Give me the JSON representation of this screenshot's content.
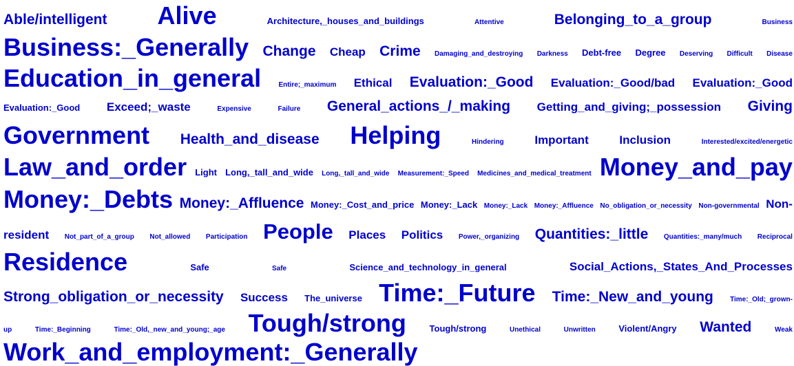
{
  "colors": {
    "word": "#0000cc",
    "background": "#ffffff"
  },
  "lines": [
    {
      "height": 46,
      "words": [
        {
          "text": "Able/intelligent",
          "size": 6
        },
        {
          "text": "Alive",
          "size": 10
        },
        {
          "text": "Architecture,_houses_and_buildings",
          "size": 2
        },
        {
          "text": "Attentive",
          "size": 1
        },
        {
          "text": "Belonging_to_a_group",
          "size": 6
        },
        {
          "text": "Business",
          "size": 1
        }
      ]
    },
    {
      "height": 46,
      "words": [
        {
          "text": "Business:_Generally",
          "size": 10
        },
        {
          "text": "Change",
          "size": 6
        },
        {
          "text": "Cheap",
          "size": 4
        },
        {
          "text": "Crime",
          "size": 6
        },
        {
          "text": "Damaging_and_destroying",
          "size": 1
        },
        {
          "text": "Darkness",
          "size": 1
        },
        {
          "text": "Debt-free",
          "size": 2
        },
        {
          "text": "Degree",
          "size": 2
        },
        {
          "text": "Deserving",
          "size": 1
        },
        {
          "text": "Difficult",
          "size": 1
        },
        {
          "text": "Disease",
          "size": 1
        }
      ]
    },
    {
      "height": 44,
      "words": [
        {
          "text": "Education_in_general",
          "size": 10
        },
        {
          "text": "Entire;_maximum",
          "size": 1
        },
        {
          "text": "Ethical",
          "size": 4
        },
        {
          "text": "Evaluation:_Good",
          "size": 6
        },
        {
          "text": "Evaluation:_Good/bad",
          "size": 4
        },
        {
          "text": "Evaluation:_Good",
          "size": 4
        }
      ]
    },
    {
      "height": 38,
      "words": [
        {
          "text": "Evaluation:_Good",
          "size": 2
        },
        {
          "text": "Exceed;_waste",
          "size": 4
        },
        {
          "text": "Expensive",
          "size": 1
        },
        {
          "text": "Failure",
          "size": 1
        },
        {
          "text": "General_actions_/_making",
          "size": 6
        },
        {
          "text": "Getting_and_giving;_possession",
          "size": 4
        },
        {
          "text": "Giving",
          "size": 6
        }
      ]
    },
    {
      "height": 45,
      "words": [
        {
          "text": "Government",
          "size": 10
        },
        {
          "text": "Health_and_disease",
          "size": 6
        },
        {
          "text": "Helping",
          "size": 10
        },
        {
          "text": "Hindering",
          "size": 1
        },
        {
          "text": "Important",
          "size": 4
        },
        {
          "text": "Inclusion",
          "size": 4
        },
        {
          "text": "Interested/excited/energetic",
          "size": 1
        }
      ]
    },
    {
      "height": 47,
      "words": [
        {
          "text": "Law_and_order",
          "size": 10
        },
        {
          "text": "Light",
          "size": 2
        },
        {
          "text": "Long,_tall_and_wide",
          "size": 2
        },
        {
          "text": "Long,_tall_and_wide",
          "size": 1
        },
        {
          "text": "Measurement:_Speed",
          "size": 1
        },
        {
          "text": "Medicines_and_medical_treatment",
          "size": 1
        },
        {
          "text": "Money_and_pay",
          "size": 10
        }
      ]
    },
    {
      "height": 48,
      "words": [
        {
          "text": "Money:_Debts",
          "size": 10
        },
        {
          "text": "Money:_Affluence",
          "size": 6
        },
        {
          "text": "Money:_Cost_and_price",
          "size": 2
        },
        {
          "text": "Money:_Lack",
          "size": 2
        },
        {
          "text": "Money:_Lack",
          "size": 1
        },
        {
          "text": "Money:_Affluence",
          "size": 1
        },
        {
          "text": "No_obligation_or_necessity",
          "size": 1
        },
        {
          "text": "Non-governmental",
          "size": 1
        },
        {
          "text": "Non-",
          "size": 4
        }
      ]
    },
    {
      "height": 45,
      "words": [
        {
          "text": "resident",
          "size": 4
        },
        {
          "text": "Not_part_of_a_group",
          "size": 1
        },
        {
          "text": "Not_allowed",
          "size": 1
        },
        {
          "text": "Participation",
          "size": 1
        },
        {
          "text": "People",
          "size": 9
        },
        {
          "text": "Places",
          "size": 4
        },
        {
          "text": "Politics",
          "size": 4
        },
        {
          "text": "Power,_organizing",
          "size": 1
        },
        {
          "text": "Quantities:_little",
          "size": 6
        },
        {
          "text": "Quantities:_many/much",
          "size": 1
        },
        {
          "text": "Reciprocal",
          "size": 1
        }
      ]
    },
    {
      "height": 44,
      "words": [
        {
          "text": "Residence",
          "size": 10
        },
        {
          "text": "Safe",
          "size": 2
        },
        {
          "text": "Safe",
          "size": 1
        },
        {
          "text": "Science_and_technology_in_general",
          "size": 2
        },
        {
          "text": "Social_Actions,_States_And_Processes",
          "size": 4
        }
      ]
    },
    {
      "height": 46,
      "words": [
        {
          "text": "Strong_obligation_or_necessity",
          "size": 6
        },
        {
          "text": "Success",
          "size": 4
        },
        {
          "text": "The_universe",
          "size": 2
        },
        {
          "text": "Time:_Future",
          "size": 10
        },
        {
          "text": "Time:_New_and_young",
          "size": 6
        },
        {
          "text": "Time:_Old;_grown-",
          "size": 1
        }
      ]
    },
    {
      "height": 42,
      "words": [
        {
          "text": "up",
          "size": 1
        },
        {
          "text": "Time:_Beginning",
          "size": 1
        },
        {
          "text": "Time:_Old,_new_and_young;_age",
          "size": 1
        },
        {
          "text": "Tough/strong",
          "size": 10
        },
        {
          "text": "Tough/strong",
          "size": 2
        },
        {
          "text": "Unethical",
          "size": 1
        },
        {
          "text": "Unwritten",
          "size": 1
        },
        {
          "text": "Violent/Angry",
          "size": 2
        },
        {
          "text": "Wanted",
          "size": 6
        },
        {
          "text": "Weak",
          "size": 1
        }
      ]
    },
    {
      "height": 41,
      "words": [
        {
          "text": "Work_and_employment:_Generally",
          "size": 10
        }
      ],
      "left": true
    }
  ]
}
